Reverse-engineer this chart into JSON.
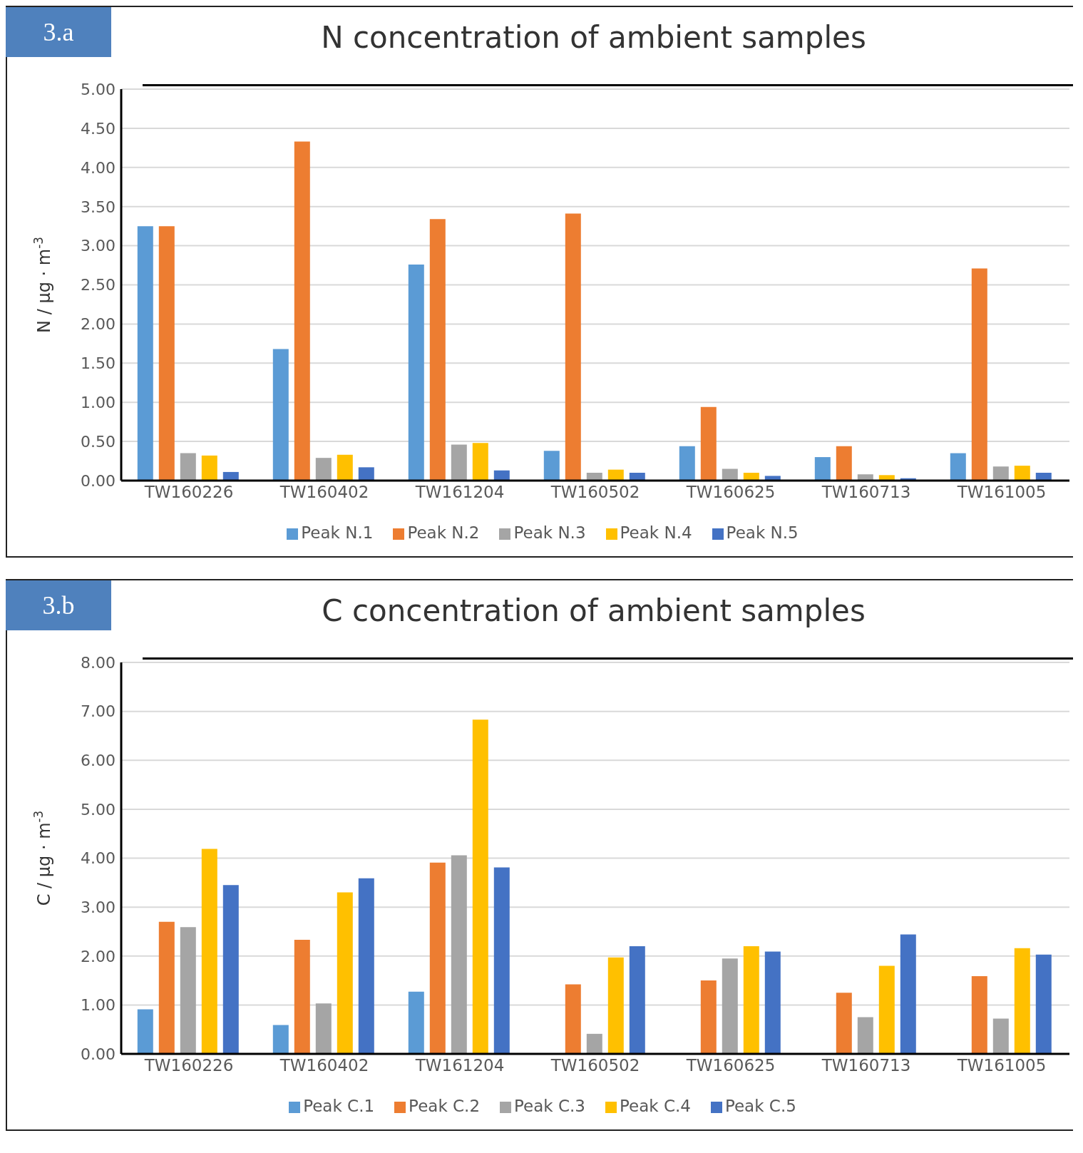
{
  "chart_data": [
    {
      "type": "bar",
      "title": "N concentration of ambient samples",
      "ylabel": "N / µg · m$^{-3}$",
      "annotations": [
        "3.a"
      ],
      "categories": [
        "TW160226",
        "TW160402",
        "TW161204",
        "TW160502",
        "TW160625",
        "TW160713",
        "TW161005"
      ],
      "series": [
        {
          "name": "Peak N.1",
          "color": "#5b9bd5",
          "values": [
            3.25,
            1.68,
            2.76,
            0.38,
            0.44,
            0.3,
            0.35
          ]
        },
        {
          "name": "Peak N.2",
          "color": "#ed7d31",
          "values": [
            3.25,
            4.33,
            3.34,
            3.41,
            0.94,
            0.44,
            2.71
          ]
        },
        {
          "name": "Peak N.3",
          "color": "#a5a5a5",
          "values": [
            0.35,
            0.29,
            0.46,
            0.1,
            0.15,
            0.08,
            0.18
          ]
        },
        {
          "name": "Peak N.4",
          "color": "#ffc000",
          "values": [
            0.32,
            0.33,
            0.48,
            0.14,
            0.1,
            0.07,
            0.19
          ]
        },
        {
          "name": "Peak N.5",
          "color": "#4472c4",
          "values": [
            0.11,
            0.17,
            0.13,
            0.1,
            0.06,
            0.03,
            0.1
          ]
        }
      ],
      "ylim": [
        0,
        5
      ],
      "yticks": [
        {
          "value": 0,
          "label": "0.00"
        },
        {
          "value": 0.5,
          "label": "0.50"
        },
        {
          "value": 1,
          "label": "1.00"
        },
        {
          "value": 1.5,
          "label": "1.50"
        },
        {
          "value": 2,
          "label": "2.00"
        },
        {
          "value": 2.5,
          "label": "2.50"
        },
        {
          "value": 3,
          "label": "3.00"
        },
        {
          "value": 3.5,
          "label": "3.50"
        },
        {
          "value": 4,
          "label": "4.00"
        },
        {
          "value": 4.5,
          "label": "4.50"
        },
        {
          "value": 5,
          "label": "5.00"
        }
      ],
      "grid": "y",
      "legend": "bottom"
    },
    {
      "type": "bar",
      "title": "C concentration of ambient samples",
      "ylabel": "C / µg · m$^{-3}$",
      "annotations": [
        "3.b"
      ],
      "categories": [
        "TW160226",
        "TW160402",
        "TW161204",
        "TW160502",
        "TW160625",
        "TW160713",
        "TW161005"
      ],
      "series": [
        {
          "name": "Peak C.1",
          "color": "#5b9bd5",
          "values": [
            0.91,
            0.59,
            1.27,
            0,
            0,
            0,
            0
          ]
        },
        {
          "name": "Peak C.2",
          "color": "#ed7d31",
          "values": [
            2.7,
            2.33,
            3.91,
            1.42,
            1.5,
            1.25,
            1.59
          ]
        },
        {
          "name": "Peak C.3",
          "color": "#a5a5a5",
          "values": [
            2.59,
            1.03,
            4.06,
            0.41,
            1.95,
            0.75,
            0.72
          ]
        },
        {
          "name": "Peak C.4",
          "color": "#ffc000",
          "values": [
            4.19,
            3.3,
            6.83,
            1.97,
            2.2,
            1.8,
            2.16
          ]
        },
        {
          "name": "Peak C.5",
          "color": "#4472c4",
          "values": [
            3.45,
            3.59,
            3.81,
            2.2,
            2.09,
            2.44,
            2.03
          ]
        }
      ],
      "ylim": [
        0,
        8
      ],
      "yticks": [
        {
          "value": 0,
          "label": "0.00"
        },
        {
          "value": 1,
          "label": "1.00"
        },
        {
          "value": 2,
          "label": "2.00"
        },
        {
          "value": 3,
          "label": "3.00"
        },
        {
          "value": 4,
          "label": "4.00"
        },
        {
          "value": 5,
          "label": "5.00"
        },
        {
          "value": 6,
          "label": "6.00"
        },
        {
          "value": 7,
          "label": "7.00"
        },
        {
          "value": 8,
          "label": "8.00"
        }
      ],
      "grid": "y",
      "legend": "bottom"
    }
  ]
}
